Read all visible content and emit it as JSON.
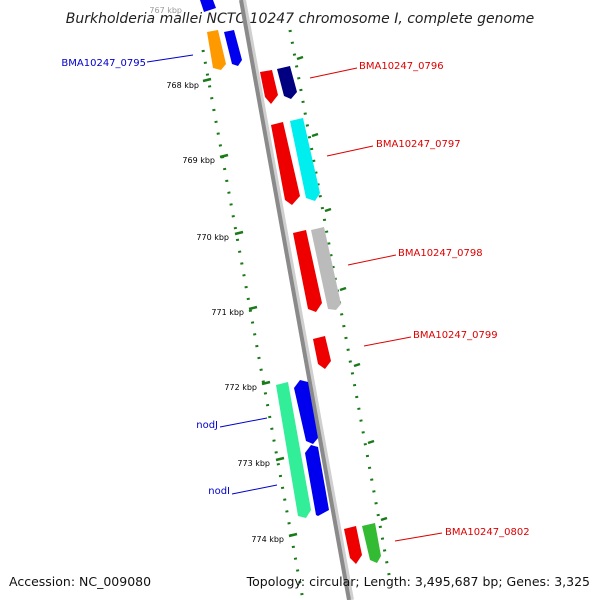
{
  "title": "Burkholderia mallei NCTC 10247 chromosome I, complete genome",
  "footer": {
    "accession": "Accession: NC_009080",
    "summary": "Topology: circular; Length: 3,495,687 bp; Genes: 3,325"
  },
  "ticks": [
    "767 kbp",
    "768 kbp",
    "769 kbp",
    "770 kbp",
    "771 kbp",
    "772 kbp",
    "773 kbp",
    "774 kbp"
  ],
  "gene_labels": {
    "bma_0795": "BMA10247_0795",
    "bma_0796": "BMA10247_0796",
    "bma_0797": "BMA10247_0797",
    "bma_0798": "BMA10247_0798",
    "bma_0799": "BMA10247_0799",
    "nodj": "nodJ",
    "nodi": "nodI",
    "bma_0802": "BMA10247_0802"
  },
  "colors": {
    "backbone": "#8a8a8a",
    "tick": "#1a7a1a",
    "left_label": "#0000cc",
    "right_label": "#dd0000"
  }
}
